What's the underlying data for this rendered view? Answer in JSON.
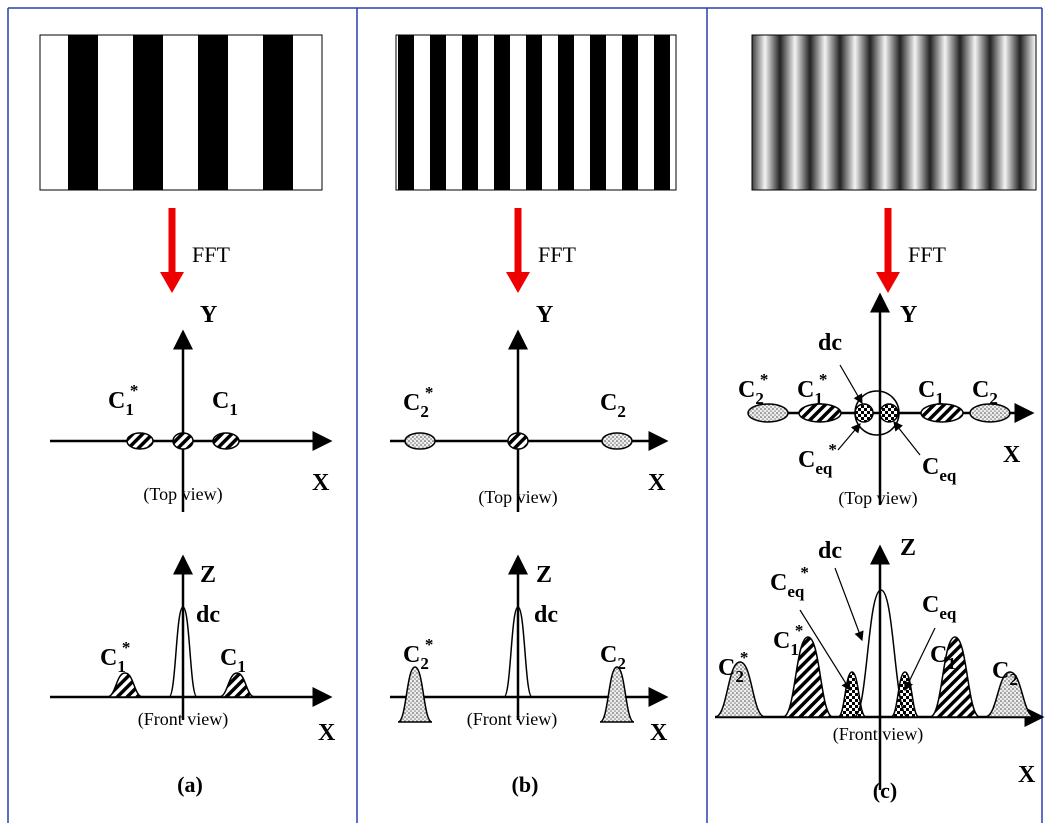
{
  "panels": [
    {
      "caption": "(a)",
      "fft_label": "FFT",
      "top_view": {
        "axis_y": "Y",
        "axis_x": "X",
        "view_label": "(Top view)",
        "peaks": [
          {
            "base": "C",
            "sub": "1",
            "sup": "*"
          },
          {
            "base": "C",
            "sub": "1"
          }
        ]
      },
      "front_view": {
        "axis_z": "Z",
        "axis_x": "X",
        "view_label": "(Front view)",
        "dc_label": "dc",
        "peaks": [
          {
            "base": "C",
            "sub": "1",
            "sup": "*"
          },
          {
            "base": "C",
            "sub": "1"
          }
        ]
      }
    },
    {
      "caption": "(b)",
      "fft_label": "FFT",
      "top_view": {
        "axis_y": "Y",
        "axis_x": "X",
        "view_label": "(Top view)",
        "peaks": [
          {
            "base": "C",
            "sub": "2",
            "sup": "*"
          },
          {
            "base": "C",
            "sub": "2"
          }
        ]
      },
      "front_view": {
        "axis_z": "Z",
        "axis_x": "X",
        "view_label": "(Front view)",
        "dc_label": "dc",
        "peaks": [
          {
            "base": "C",
            "sub": "2",
            "sup": "*"
          },
          {
            "base": "C",
            "sub": "2"
          }
        ]
      }
    },
    {
      "caption": "(c)",
      "fft_label": "FFT",
      "top_view": {
        "axis_y": "Y",
        "axis_x": "X",
        "view_label": "(Top view)",
        "dc_label": "dc",
        "peaks": [
          {
            "base": "C",
            "sub": "2",
            "sup": "*"
          },
          {
            "base": "C",
            "sub": "1",
            "sup": "*"
          },
          {
            "base": "C",
            "sub": "1"
          },
          {
            "base": "C",
            "sub": "2"
          },
          {
            "base": "C",
            "sub": "eq",
            "sup": "*"
          },
          {
            "base": "C",
            "sub": "eq"
          }
        ]
      },
      "front_view": {
        "axis_z": "Z",
        "axis_x": "X",
        "view_label": "(Front view)",
        "dc_label": "dc",
        "peaks": [
          {
            "base": "C",
            "sub": "2",
            "sup": "*"
          },
          {
            "base": "C",
            "sub": "1",
            "sup": "*"
          },
          {
            "base": "C",
            "sub": "eq",
            "sup": "*"
          },
          {
            "base": "C",
            "sub": "eq"
          },
          {
            "base": "C",
            "sub": "1"
          },
          {
            "base": "C",
            "sub": "2"
          }
        ]
      }
    }
  ]
}
